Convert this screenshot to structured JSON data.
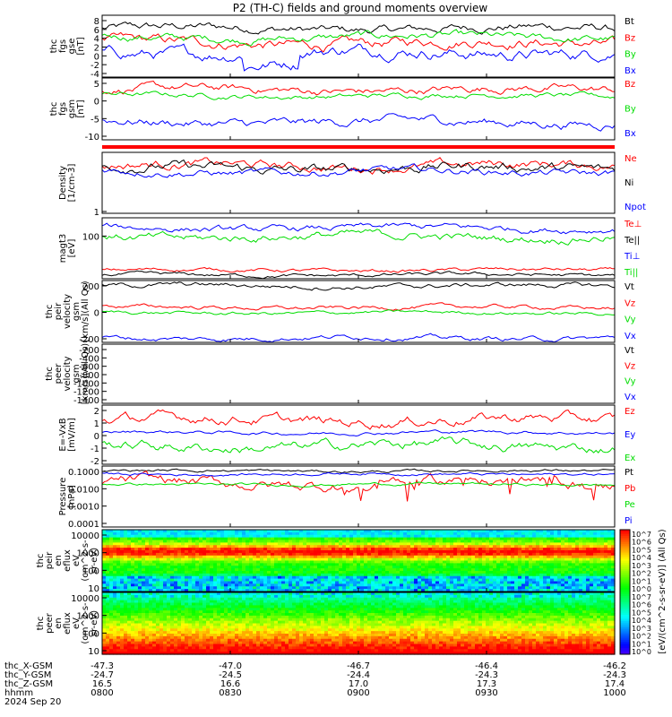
{
  "title": "P2 (TH-C) fields and ground moments overview",
  "date": "2024 Sep 20",
  "colorbar": {
    "label": "[eV/(cm^2-s-sr-eV)] (All Qs)",
    "tick_labels": [
      "10^7",
      "10^6",
      "10^5",
      "10^4",
      "10^3",
      "10^2",
      "10^1",
      "10^0",
      "10^7",
      "10^6",
      "10^5",
      "10^4",
      "10^3",
      "10^2",
      "10^1",
      "10^0"
    ]
  },
  "ephemeris": {
    "labels": [
      "thc_X-GSM",
      "thc_Y-GSM",
      "thc_Z-GSM",
      "hhmm"
    ],
    "rows": [
      [
        "-47.3",
        "-47.0",
        "-46.7",
        "-46.4",
        "-46.2"
      ],
      [
        "-24.7",
        "-24.5",
        "-24.4",
        "-24.3",
        "-24.3"
      ],
      [
        "16.5",
        "16.6",
        "17.0",
        "17.3",
        "17.4"
      ],
      [
        "0800",
        "0830",
        "0900",
        "0930",
        "1000"
      ]
    ]
  },
  "chart_data": [
    {
      "type": "line",
      "id": "fgs_gse",
      "ylabel": [
        "thc",
        "fgs",
        "gse",
        "[nT]"
      ],
      "yticks": [
        "8",
        "6",
        "4",
        "2",
        "0",
        "-2",
        "-4"
      ],
      "yrange": [
        -5,
        9
      ],
      "series": [
        {
          "name": "Bt",
          "color": "#000000",
          "mean": 6.0,
          "amp": 1.3
        },
        {
          "name": "Bz",
          "color": "#ff0000",
          "mean": 2.7,
          "amp": 1.6
        },
        {
          "name": "By",
          "color": "#00dd00",
          "mean": 4.0,
          "amp": 1.2
        },
        {
          "name": "Bx",
          "color": "#0000ff",
          "mean": 0.6,
          "amp": 1.8
        }
      ]
    },
    {
      "type": "line",
      "id": "fgs_gsm",
      "ylabel": [
        "thc",
        "fgs",
        "gsm",
        "[nT]"
      ],
      "yticks": [
        "5",
        "0",
        "-5",
        "-10"
      ],
      "yrange": [
        -12,
        9
      ],
      "series": [
        {
          "name": "Bz",
          "color": "#ff0000",
          "mean": 5.0,
          "amp": 1.8
        },
        {
          "name": "By",
          "color": "#00dd00",
          "mean": 3.0,
          "amp": 1.2
        },
        {
          "name": "Bx",
          "color": "#0000ff",
          "mean": -6.0,
          "amp": 2.0
        }
      ]
    },
    {
      "type": "line",
      "id": "density",
      "ylabel": [
        "Density",
        "[1/cm-3]"
      ],
      "yticks": [
        "1"
      ],
      "yrange": [
        0,
        10
      ],
      "series": [
        {
          "name": "Ne",
          "color": "#ff0000",
          "mean": 7.8,
          "amp": 1.0
        },
        {
          "name": "Ni",
          "color": "#000000",
          "mean": 7.4,
          "amp": 1.1
        },
        {
          "name": "Npot",
          "color": "#0000ff",
          "mean": 6.8,
          "amp": 0.8
        }
      ]
    },
    {
      "type": "line",
      "id": "temperature",
      "ylabel": [
        "magt3",
        "[eV]"
      ],
      "yticks": [
        "100"
      ],
      "yrange": [
        0,
        10
      ],
      "series": [
        {
          "name": "Te⊥",
          "color": "#ff0000",
          "mean": 1.4,
          "amp": 0.4
        },
        {
          "name": "Te||",
          "color": "#000000",
          "mean": 0.6,
          "amp": 0.4
        },
        {
          "name": "Ti⊥",
          "color": "#0000ff",
          "mean": 8.3,
          "amp": 0.7
        },
        {
          "name": "Ti||",
          "color": "#00dd00",
          "mean": 6.9,
          "amp": 0.9
        }
      ]
    },
    {
      "type": "line",
      "id": "peir_velocity",
      "ylabel": [
        "thc",
        "peir",
        "velocity",
        "gsm",
        "[km/s](All Qs)"
      ],
      "yticks": [
        "200",
        "0",
        "-200"
      ],
      "yrange": [
        -330,
        360
      ],
      "series": [
        {
          "name": "Vt",
          "color": "#000000",
          "mean": 300,
          "amp": 35
        },
        {
          "name": "Vz",
          "color": "#ff0000",
          "mean": 60,
          "amp": 30
        },
        {
          "name": "Vy",
          "color": "#00dd00",
          "mean": 0,
          "amp": 25
        },
        {
          "name": "Vx",
          "color": "#0000ff",
          "mean": -280,
          "amp": 35
        }
      ]
    },
    {
      "type": "line",
      "id": "peer_velocity",
      "ylabel": [
        "thc",
        "peer",
        "velocity",
        "gsm",
        "[km/s](All Qs)"
      ],
      "yticks": [
        "-200",
        "-400",
        "-600",
        "-800",
        "-1000",
        "-1200",
        "-1400"
      ],
      "yrange": [
        -1450,
        -150
      ],
      "series": [
        {
          "name": "Vt",
          "color": "#000000",
          "mean": null,
          "amp": 0
        },
        {
          "name": "Vz",
          "color": "#ff0000",
          "mean": null,
          "amp": 0
        },
        {
          "name": "Vy",
          "color": "#00dd00",
          "mean": null,
          "amp": 0
        },
        {
          "name": "Vx",
          "color": "#0000ff",
          "mean": null,
          "amp": 0
        }
      ]
    },
    {
      "type": "line",
      "id": "exb",
      "ylabel": [
        "E=-VxB",
        "[mV/m]"
      ],
      "yticks": [
        "2",
        "1",
        "0",
        "-1",
        "-2"
      ],
      "yrange": [
        -2.6,
        2.6
      ],
      "series": [
        {
          "name": "Ez",
          "color": "#ff0000",
          "mean": 1.3,
          "amp": 0.6
        },
        {
          "name": "Ey",
          "color": "#0000ff",
          "mean": 0.2,
          "amp": 0.2
        },
        {
          "name": "Ex",
          "color": "#00dd00",
          "mean": -1.0,
          "amp": 0.6
        }
      ]
    },
    {
      "type": "line",
      "id": "pressure",
      "ylabel": [
        "Pressure",
        "[nPa]"
      ],
      "yticks": [
        "0.1000",
        "0.0100",
        "0.0010",
        "0.0001"
      ],
      "yrange": [
        0,
        10
      ],
      "series": [
        {
          "name": "Pt",
          "color": "#000000",
          "mean": 9.2,
          "amp": 0.3
        },
        {
          "name": "Pb",
          "color": "#ff0000",
          "mean": 7.2,
          "amp": 1.2
        },
        {
          "name": "Pe",
          "color": "#00dd00",
          "mean": 7.0,
          "amp": 0.3
        },
        {
          "name": "Pi",
          "color": "#0000ff",
          "mean": 8.7,
          "amp": 0.3
        }
      ]
    },
    {
      "type": "heatmap",
      "id": "peir_spec",
      "ylabel": [
        "thc",
        "peir",
        "en",
        "eflux",
        "eV",
        "(cm^2-s-",
        "sr-eV)"
      ],
      "yticks": [
        "10000",
        "1000",
        "100",
        "10"
      ]
    },
    {
      "type": "heatmap",
      "id": "peer_spec",
      "ylabel": [
        "thc",
        "peer",
        "en",
        "eflux",
        "eV",
        "(cm^2-s-",
        "sr-eV)"
      ],
      "yticks": [
        "10000",
        "1000",
        "100",
        "10"
      ]
    }
  ]
}
